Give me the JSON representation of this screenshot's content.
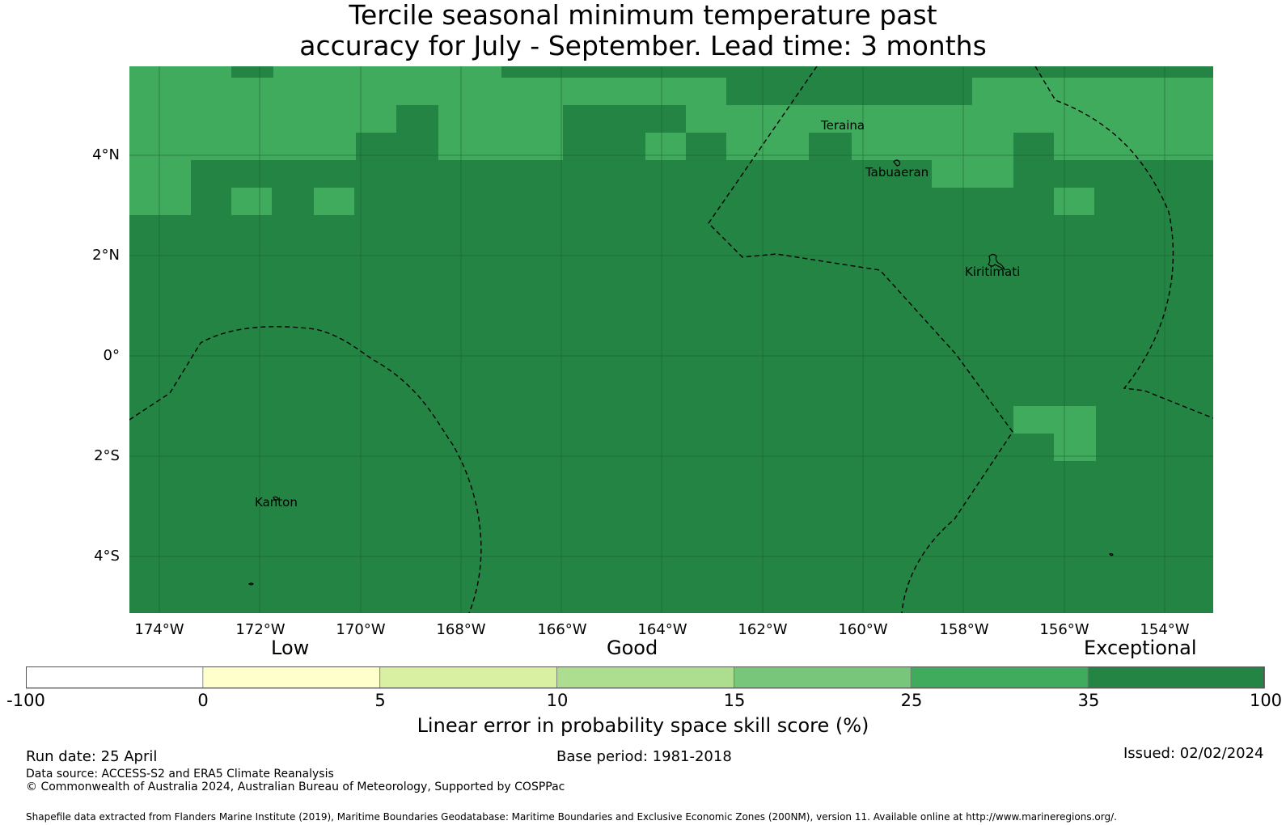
{
  "title_line1": "Tercile seasonal minimum temperature past",
  "title_line2": "accuracy for July - September. Lead time: 3 months",
  "lat_labels": [
    "4°N",
    "2°N",
    "0°",
    "2°S",
    "4°S"
  ],
  "lon_labels": [
    "174°W",
    "172°W",
    "170°W",
    "168°W",
    "166°W",
    "164°W",
    "162°W",
    "160°W",
    "158°W",
    "156°W",
    "154°W"
  ],
  "places": [
    "Teraina",
    "Tabuaeran",
    "Kiritimati",
    "Kanton"
  ],
  "categories": {
    "low": "Low",
    "good": "Good",
    "exceptional": "Exceptional"
  },
  "colorbar": {
    "ticks": [
      "-100",
      "0",
      "5",
      "10",
      "15",
      "25",
      "35",
      "100"
    ],
    "colors": [
      "#ffffff",
      "#ffffcc",
      "#d9f0a3",
      "#addd8e",
      "#78c679",
      "#41ab5d",
      "#238443"
    ],
    "label": "Linear error in probability space skill score (%)"
  },
  "map_colors": {
    "high": "#41ab5d",
    "exceptional": "#238443"
  },
  "footer": {
    "run_date": "Run date: 25 April",
    "base_period": "Base period: 1981-2018",
    "issued": "Issued: 02/02/2024",
    "data_source": "Data source: ACCESS-S2 and ERA5 Climate Reanalysis",
    "copyright": "© Commonwealth of Australia 2024, Australian Bureau of Meteorology, Supported by COSPPac",
    "shapefile": "Shapefile data extracted from Flanders Marine Institute (2019), Maritime Boundaries Geodatabase: Maritime Boundaries and Exclusive Economic Zones (200NM), version 11. Available online at http://www.marineregions.org/."
  }
}
